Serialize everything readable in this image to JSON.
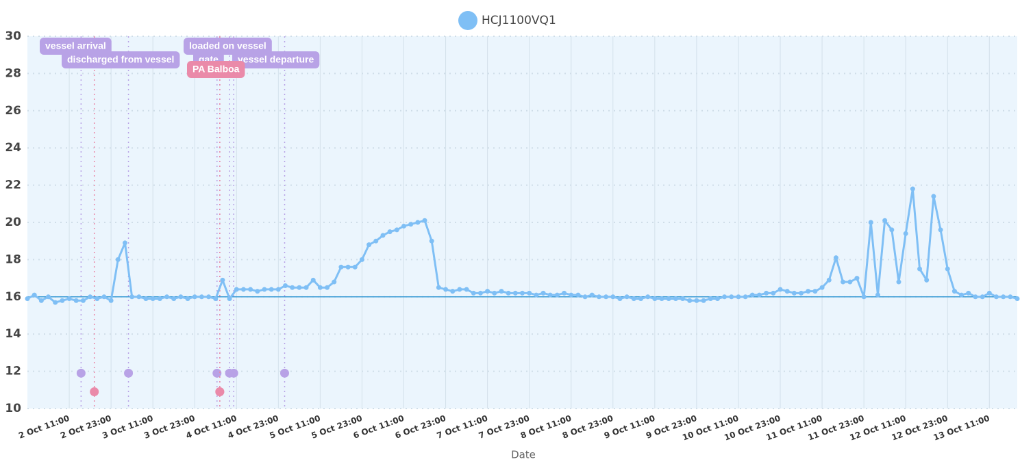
{
  "chart_data": {
    "type": "line",
    "x_title": "Date",
    "categories": [
      null,
      null,
      null,
      null,
      null,
      null,
      "2 Oct 11:00",
      null,
      null,
      null,
      null,
      null,
      "2 Oct 23:00",
      null,
      null,
      null,
      null,
      null,
      "3 Oct 11:00",
      null,
      null,
      null,
      null,
      null,
      "3 Oct 23:00",
      null,
      null,
      null,
      null,
      null,
      "4 Oct 11:00",
      null,
      null,
      null,
      null,
      null,
      "4 Oct 23:00",
      null,
      null,
      null,
      null,
      null,
      "5 Oct 11:00",
      null,
      null,
      null,
      null,
      null,
      "5 Oct 23:00",
      null,
      null,
      null,
      null,
      null,
      "6 Oct 11:00",
      null,
      null,
      null,
      null,
      null,
      "6 Oct 23:00",
      null,
      null,
      null,
      null,
      null,
      "7 Oct 11:00",
      null,
      null,
      null,
      null,
      null,
      "7 Oct 23:00",
      null,
      null,
      null,
      null,
      null,
      "8 Oct 11:00",
      null,
      null,
      null,
      null,
      null,
      "8 Oct 23:00",
      null,
      null,
      null,
      null,
      null,
      "9 Oct 11:00",
      null,
      null,
      null,
      null,
      null,
      "9 Oct 23:00",
      null,
      null,
      null,
      null,
      null,
      "10 Oct 11:00",
      null,
      null,
      null,
      null,
      null,
      "10 Oct 23:00",
      null,
      null,
      null,
      null,
      null,
      "11 Oct 11:00",
      null,
      null,
      null,
      null,
      null,
      "11 Oct 23:00",
      null,
      null,
      null,
      null,
      null,
      "12 Oct 11:00",
      null,
      null,
      null,
      null,
      null,
      "12 Oct 23:00",
      null,
      null,
      null,
      null,
      null,
      "13 Oct 11:00",
      null,
      null,
      null,
      null
    ],
    "series": [
      {
        "name": "HCJ1100VQ1",
        "color": "#7fbff5",
        "values": [
          15.9,
          16.1,
          15.8,
          16.0,
          15.7,
          15.8,
          15.9,
          15.8,
          15.8,
          16.0,
          15.9,
          16.0,
          15.8,
          18.0,
          18.9,
          16.0,
          16.0,
          15.9,
          15.9,
          15.9,
          16.0,
          15.9,
          16.0,
          15.9,
          16.0,
          16.0,
          16.0,
          15.9,
          16.9,
          15.9,
          16.4,
          16.4,
          16.4,
          16.3,
          16.4,
          16.4,
          16.4,
          16.6,
          16.5,
          16.5,
          16.5,
          16.9,
          16.5,
          16.5,
          16.8,
          17.6,
          17.6,
          17.6,
          18.0,
          18.8,
          19.0,
          19.3,
          19.5,
          19.6,
          19.8,
          19.9,
          20.0,
          20.1,
          19.0,
          16.5,
          16.4,
          16.3,
          16.4,
          16.4,
          16.2,
          16.2,
          16.3,
          16.2,
          16.3,
          16.2,
          16.2,
          16.2,
          16.2,
          16.1,
          16.2,
          16.1,
          16.1,
          16.2,
          16.1,
          16.1,
          16.0,
          16.1,
          16.0,
          16.0,
          16.0,
          15.9,
          16.0,
          15.9,
          15.9,
          16.0,
          15.9,
          15.9,
          15.9,
          15.9,
          15.9,
          15.8,
          15.8,
          15.8,
          15.9,
          15.9,
          16.0,
          16.0,
          16.0,
          16.0,
          16.1,
          16.1,
          16.2,
          16.2,
          16.4,
          16.3,
          16.2,
          16.2,
          16.3,
          16.3,
          16.5,
          16.9,
          18.1,
          16.8,
          16.8,
          17.0,
          16.0,
          20.0,
          16.1,
          20.1,
          19.6,
          16.8,
          19.4,
          21.8,
          17.5,
          16.9,
          21.4,
          19.6,
          17.5,
          16.3,
          16.1,
          16.2,
          16.0,
          16.0,
          16.2,
          16.0,
          16.0,
          16.0,
          15.9
        ]
      }
    ],
    "threshold": 16,
    "threshold_color": "#3a9bd5",
    "events": [
      {
        "label": "vessel arrival",
        "color": "#b8a2e6",
        "x": 7.7,
        "y": 11.9
      },
      {
        "color": "#ea8aa9",
        "x": 9.6,
        "y": 10.9
      },
      {
        "label": "discharged from vessel",
        "color": "#b8a2e6",
        "x": 14.5,
        "y": 11.9
      },
      {
        "label": "loaded on vessel",
        "color": "#b8a2e6",
        "x": 27.2,
        "y": 11.9
      },
      {
        "color": "#ea8aa9",
        "x": 27.6,
        "y": 10.9
      },
      {
        "label": "gate",
        "color": "#b8a2e6",
        "x": 29.0,
        "y": 11.9
      },
      {
        "label": "vessel departure",
        "color": "#b8a2e6",
        "x": 29.6,
        "y": 11.9
      },
      {
        "color": "#b8a2e6",
        "x": 36.9,
        "y": 11.9
      },
      {
        "label": "PA Balboa",
        "color": "#ea8aa9",
        "x": 27.6,
        "y": 10.9
      }
    ],
    "ylim": [
      10,
      30
    ],
    "yticks": [
      10,
      12,
      14,
      16,
      18,
      20,
      22,
      24,
      26,
      28,
      30
    ],
    "grid": true,
    "legend": "top"
  }
}
